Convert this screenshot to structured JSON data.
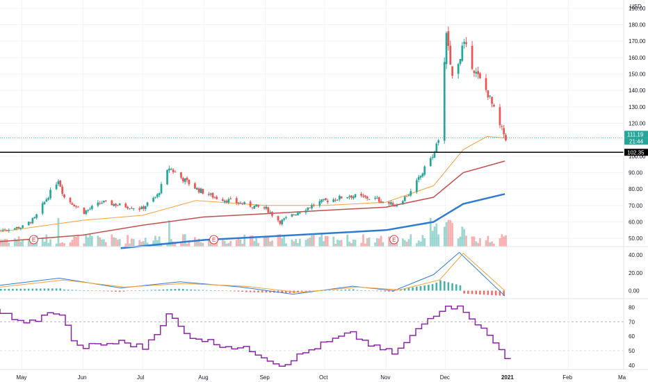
{
  "currency": "USD",
  "price_axis_labels": [
    "190.00",
    "180.00",
    "170.00",
    "160.00",
    "150.00",
    "140.00",
    "130.00",
    "120.00",
    "110.00",
    "100.00",
    "90.00",
    "80.00",
    "70.00",
    "60.00",
    "50.00"
  ],
  "macd_axis_labels": [
    "40.00",
    "20.00",
    "0.00"
  ],
  "rsi_axis_labels": [
    "80",
    "70",
    "60",
    "50",
    "40"
  ],
  "time_axis_labels": [
    "May",
    "Jun",
    "Jul",
    "Aug",
    "Sep",
    "Oct",
    "Nov",
    "Dec",
    "2021",
    "Feb",
    "Ma"
  ],
  "last_price_tag": "111.19",
  "countdown_tag": "21:44",
  "level_tag": "102.35",
  "earnings_marker": "E",
  "colors": {
    "bull": "#26a69a",
    "bear": "#ef5350",
    "ma_fast": "#f5a03a",
    "ma_mid": "#c0504d",
    "ma_slow": "#2f7bd4",
    "macd": "#2f7bd4",
    "signal": "#f5a03a",
    "rsi": "#8e24aa",
    "level_line": "#000000"
  },
  "chart_data": [
    {
      "type": "candlestick",
      "title": "",
      "y_unit": "USD",
      "y_axis_ticks": [
        190,
        180,
        170,
        160,
        150,
        140,
        130,
        120,
        110,
        100,
        90,
        80,
        70,
        60,
        50
      ],
      "x_axis_ticks": [
        "May",
        "Jun",
        "Jul",
        "Aug",
        "Sep",
        "Oct",
        "Nov",
        "Dec",
        "2021",
        "Feb",
        "Ma"
      ],
      "x_range": [
        "2020-04-20",
        "2021-03-01"
      ],
      "ylim": [
        45,
        195
      ],
      "last_price": 111.19,
      "horizontal_level": 102.35,
      "earnings_dates": [
        "2020-05-07",
        "2020-08-06",
        "2020-11-05"
      ],
      "close_series": [
        {
          "date": "2020-04-20",
          "close": 55
        },
        {
          "date": "2020-05-01",
          "close": 57
        },
        {
          "date": "2020-05-07",
          "close": 62
        },
        {
          "date": "2020-05-12",
          "close": 72
        },
        {
          "date": "2020-05-19",
          "close": 86
        },
        {
          "date": "2020-05-22",
          "close": 75
        },
        {
          "date": "2020-06-01",
          "close": 66
        },
        {
          "date": "2020-06-10",
          "close": 72
        },
        {
          "date": "2020-06-20",
          "close": 70
        },
        {
          "date": "2020-06-30",
          "close": 68
        },
        {
          "date": "2020-07-08",
          "close": 76
        },
        {
          "date": "2020-07-14",
          "close": 93
        },
        {
          "date": "2020-07-20",
          "close": 87
        },
        {
          "date": "2020-07-28",
          "close": 80
        },
        {
          "date": "2020-08-06",
          "close": 75
        },
        {
          "date": "2020-08-20",
          "close": 71
        },
        {
          "date": "2020-09-01",
          "close": 68
        },
        {
          "date": "2020-09-08",
          "close": 60
        },
        {
          "date": "2020-09-17",
          "close": 66
        },
        {
          "date": "2020-09-28",
          "close": 72
        },
        {
          "date": "2020-10-13",
          "close": 76
        },
        {
          "date": "2020-10-26",
          "close": 74
        },
        {
          "date": "2020-11-05",
          "close": 70
        },
        {
          "date": "2020-11-13",
          "close": 78
        },
        {
          "date": "2020-11-20",
          "close": 92
        },
        {
          "date": "2020-11-27",
          "close": 108
        },
        {
          "date": "2020-12-01",
          "close": 176
        },
        {
          "date": "2020-12-04",
          "close": 148
        },
        {
          "date": "2020-12-10",
          "close": 168
        },
        {
          "date": "2020-12-16",
          "close": 150
        },
        {
          "date": "2020-12-22",
          "close": 138
        },
        {
          "date": "2020-12-28",
          "close": 118
        },
        {
          "date": "2020-12-31",
          "close": 111.19
        }
      ],
      "moving_averages": [
        {
          "color": "#f5a03a",
          "points": [
            [
              "2020-04-20",
              54
            ],
            [
              "2020-06-01",
              61
            ],
            [
              "2020-07-01",
              64
            ],
            [
              "2020-07-28",
              73
            ],
            [
              "2020-09-01",
              70
            ],
            [
              "2020-10-01",
              70
            ],
            [
              "2020-11-01",
              72
            ],
            [
              "2020-11-25",
              82
            ],
            [
              "2020-12-10",
              104
            ],
            [
              "2020-12-22",
              112
            ],
            [
              "2020-12-31",
              111
            ]
          ]
        },
        {
          "color": "#c0504d",
          "points": [
            [
              "2020-04-20",
              48
            ],
            [
              "2020-06-01",
              52
            ],
            [
              "2020-07-01",
              58
            ],
            [
              "2020-08-01",
              63
            ],
            [
              "2020-09-01",
              65
            ],
            [
              "2020-10-01",
              67
            ],
            [
              "2020-11-01",
              69
            ],
            [
              "2020-11-25",
              75
            ],
            [
              "2020-12-10",
              90
            ],
            [
              "2020-12-31",
              97
            ]
          ]
        },
        {
          "color": "#2f7bd4",
          "points": [
            [
              "2020-06-20",
              44
            ],
            [
              "2020-08-01",
              49
            ],
            [
              "2020-09-01",
              51
            ],
            [
              "2020-10-01",
              53
            ],
            [
              "2020-11-01",
              55
            ],
            [
              "2020-11-25",
              60
            ],
            [
              "2020-12-10",
              71
            ],
            [
              "2020-12-31",
              77
            ]
          ]
        }
      ]
    },
    {
      "type": "line",
      "title": "",
      "y_axis_ticks": [
        40,
        20,
        0
      ],
      "ylim": [
        -9,
        48
      ],
      "series": [
        {
          "color": "#2f7bd4",
          "points": [
            [
              "2020-04-20",
              6
            ],
            [
              "2020-05-20",
              14
            ],
            [
              "2020-06-20",
              3
            ],
            [
              "2020-07-20",
              10
            ],
            [
              "2020-08-20",
              4
            ],
            [
              "2020-09-15",
              -4
            ],
            [
              "2020-10-15",
              5
            ],
            [
              "2020-11-05",
              0
            ],
            [
              "2020-11-25",
              18
            ],
            [
              "2020-12-08",
              43
            ],
            [
              "2020-12-31",
              -6
            ]
          ]
        },
        {
          "color": "#f5a03a",
          "points": [
            [
              "2020-04-20",
              4
            ],
            [
              "2020-05-22",
              12
            ],
            [
              "2020-06-22",
              4
            ],
            [
              "2020-07-22",
              8
            ],
            [
              "2020-08-22",
              5
            ],
            [
              "2020-09-18",
              -2
            ],
            [
              "2020-10-18",
              4
            ],
            [
              "2020-11-08",
              1
            ],
            [
              "2020-11-28",
              12
            ],
            [
              "2020-12-10",
              42
            ],
            [
              "2020-12-31",
              0
            ]
          ]
        }
      ]
    },
    {
      "type": "line",
      "title": "",
      "y_axis_ticks": [
        80,
        70,
        60,
        50,
        40
      ],
      "ylim": [
        37,
        85
      ],
      "series": [
        {
          "color": "#8e24aa",
          "points": [
            [
              "2020-04-20",
              78
            ],
            [
              "2020-05-01",
              68
            ],
            [
              "2020-05-12",
              74
            ],
            [
              "2020-05-19",
              78
            ],
            [
              "2020-05-28",
              52
            ],
            [
              "2020-06-20",
              56
            ],
            [
              "2020-07-01",
              52
            ],
            [
              "2020-07-14",
              76
            ],
            [
              "2020-07-21",
              62
            ],
            [
              "2020-08-06",
              55
            ],
            [
              "2020-08-25",
              50
            ],
            [
              "2020-09-08",
              40
            ],
            [
              "2020-09-25",
              52
            ],
            [
              "2020-10-13",
              62
            ],
            [
              "2020-10-26",
              52
            ],
            [
              "2020-11-05",
              48
            ],
            [
              "2020-11-20",
              70
            ],
            [
              "2020-12-01",
              82
            ],
            [
              "2020-12-10",
              78
            ],
            [
              "2020-12-22",
              60
            ],
            [
              "2020-12-31",
              46
            ]
          ]
        }
      ]
    }
  ]
}
